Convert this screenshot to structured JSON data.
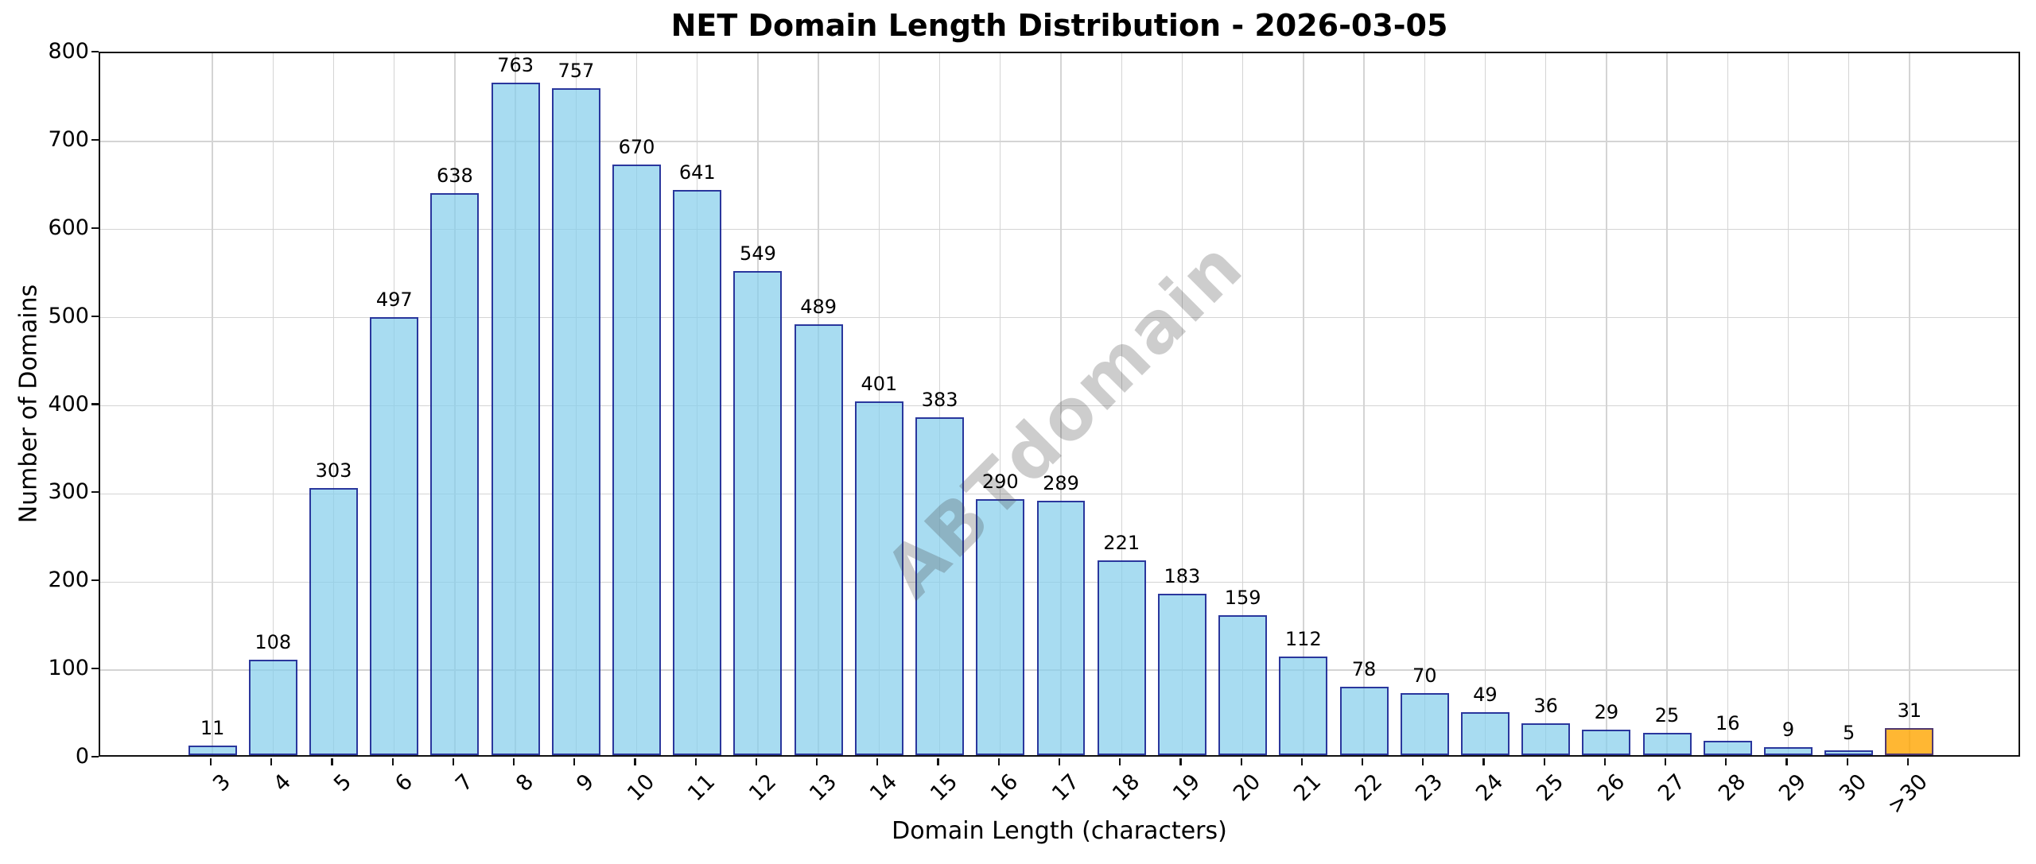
{
  "figure": {
    "title": "NET Domain Length Distribution - 2026-03-05",
    "watermark": "ABTdomain"
  },
  "chart_data": {
    "type": "bar",
    "title": "NET Domain Length Distribution - 2026-03-05",
    "xlabel": "Domain Length (characters)",
    "ylabel": "Number of Domains",
    "categories": [
      "3",
      "4",
      "5",
      "6",
      "7",
      "8",
      "9",
      "10",
      "11",
      "12",
      "13",
      "14",
      "15",
      "16",
      "17",
      "18",
      "19",
      "20",
      "21",
      "22",
      "23",
      "24",
      "25",
      "26",
      "27",
      "28",
      "29",
      "30",
      ">30"
    ],
    "values": [
      11,
      108,
      303,
      497,
      638,
      763,
      757,
      670,
      641,
      549,
      489,
      401,
      383,
      290,
      289,
      221,
      183,
      159,
      112,
      78,
      70,
      49,
      36,
      29,
      25,
      16,
      9,
      5,
      31
    ],
    "bar_value_labels_shown": true,
    "ylim": [
      0,
      800
    ],
    "yticks": [
      0,
      100,
      200,
      300,
      400,
      500,
      600,
      700,
      800
    ],
    "grid": true,
    "legend_position": "none",
    "xticklabel_rotation_deg": 45,
    "highlight_index": 28,
    "watermark_text": "ABTdomain",
    "colors": {
      "bar_fill": "rgba(135,206,235,0.72)",
      "bar_edge": "rgba(0,0,128,0.75)",
      "highlight_fill": "rgba(255,165,0,0.80)",
      "highlight_edge": "rgba(30,20,130,0.78)",
      "grid": "#d4d4d4",
      "spine": "#111111",
      "watermark": "rgba(70,70,70,0.27)"
    }
  }
}
